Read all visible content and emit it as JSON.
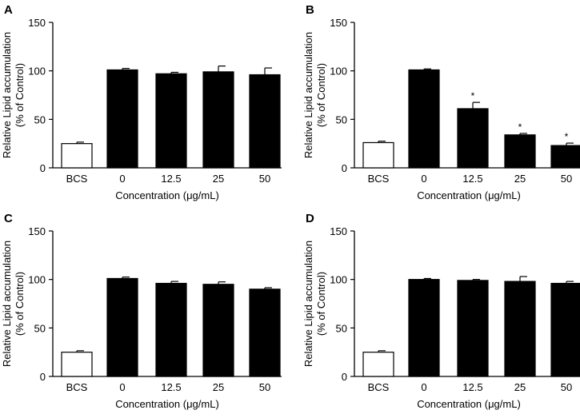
{
  "chart_data": [
    {
      "type": "bar",
      "panel": "A",
      "categories": [
        "BCS",
        "0",
        "12.5",
        "25",
        "50"
      ],
      "values": [
        25,
        101,
        97,
        99,
        96
      ],
      "errors": [
        1.5,
        1.5,
        1.5,
        6,
        7
      ],
      "fill": [
        "white",
        "black",
        "black",
        "black",
        "black"
      ],
      "significance": [
        "",
        "",
        "",
        "",
        ""
      ],
      "xlabel": "Concentration (μg/mL)",
      "ylabel_line1": "Relative Lipid accumulation",
      "ylabel_line2": "(% of Control)",
      "yticks": [
        "0",
        "50",
        "100",
        "150"
      ],
      "ylim": [
        0,
        150
      ]
    },
    {
      "type": "bar",
      "panel": "B",
      "categories": [
        "BCS",
        "0",
        "12.5",
        "25",
        "50"
      ],
      "values": [
        26,
        101,
        61,
        34,
        23
      ],
      "errors": [
        1.5,
        1,
        6.5,
        1.5,
        2.5
      ],
      "fill": [
        "white",
        "black",
        "black",
        "black",
        "black"
      ],
      "significance": [
        "",
        "",
        "*",
        "*",
        "*"
      ],
      "xlabel": "Concentration (μg/mL)",
      "ylabel_line1": "Relative Lipid accumulation",
      "ylabel_line2": "(% of Control)",
      "yticks": [
        "0",
        "50",
        "100",
        "150"
      ],
      "ylim": [
        0,
        150
      ]
    },
    {
      "type": "bar",
      "panel": "C",
      "categories": [
        "BCS",
        "0",
        "12.5",
        "25",
        "50"
      ],
      "values": [
        25,
        101,
        96,
        95,
        90
      ],
      "errors": [
        1.5,
        1.5,
        2,
        2.5,
        1.5
      ],
      "fill": [
        "white",
        "black",
        "black",
        "black",
        "black"
      ],
      "significance": [
        "",
        "",
        "",
        "",
        ""
      ],
      "xlabel": "Concentration (μg/mL)",
      "ylabel_line1": "Relative Lipid accumulation",
      "ylabel_line2": "(% of Control)",
      "yticks": [
        "0",
        "50",
        "100",
        "150"
      ],
      "ylim": [
        0,
        150
      ]
    },
    {
      "type": "bar",
      "panel": "D",
      "categories": [
        "BCS",
        "0",
        "12.5",
        "25",
        "50"
      ],
      "values": [
        25,
        100,
        99,
        98,
        96
      ],
      "errors": [
        1.5,
        1,
        1,
        5,
        2
      ],
      "fill": [
        "white",
        "black",
        "black",
        "black",
        "black"
      ],
      "significance": [
        "",
        "",
        "",
        "",
        ""
      ],
      "xlabel": "Concentration (μg/mL)",
      "ylabel_line1": "Relative Lipid accumulation",
      "ylabel_line2": "(% of Control)",
      "yticks": [
        "0",
        "50",
        "100",
        "150"
      ],
      "ylim": [
        0,
        150
      ]
    }
  ]
}
